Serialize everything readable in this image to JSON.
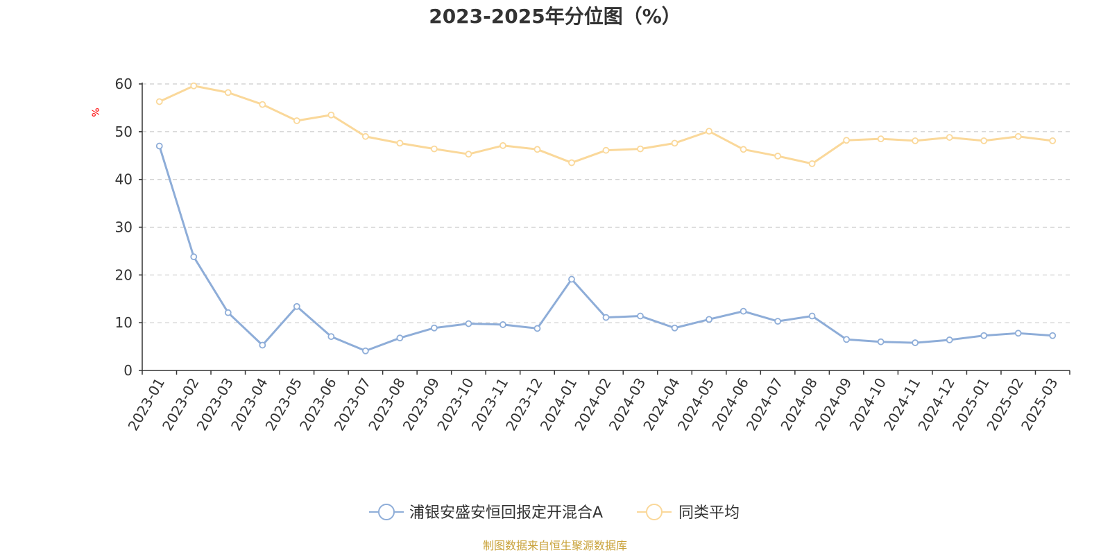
{
  "chart_data": {
    "type": "line",
    "title": "2023-2025年分位图（%）",
    "y_unit": "%",
    "ylim": [
      0,
      60
    ],
    "yticks": [
      0,
      10,
      20,
      30,
      40,
      50,
      60
    ],
    "grid": "horizontal-dashed",
    "legend_position": "bottom-center",
    "categories": [
      "2023-01",
      "2023-02",
      "2023-03",
      "2023-04",
      "2023-05",
      "2023-06",
      "2023-07",
      "2023-08",
      "2023-09",
      "2023-10",
      "2023-11",
      "2023-12",
      "2024-01",
      "2024-02",
      "2024-03",
      "2024-04",
      "2024-05",
      "2024-06",
      "2024-07",
      "2024-08",
      "2024-09",
      "2024-10",
      "2024-11",
      "2024-12",
      "2025-01",
      "2025-02",
      "2025-03"
    ],
    "series": [
      {
        "name": "浦银安盛安恒回报定开混合A",
        "color": "#8eadd8",
        "values": [
          47.0,
          23.8,
          12.1,
          5.3,
          13.4,
          7.1,
          4.1,
          6.8,
          8.9,
          9.8,
          9.6,
          8.8,
          19.1,
          11.1,
          11.4,
          8.9,
          10.7,
          12.4,
          10.3,
          11.4,
          6.5,
          6.0,
          5.8,
          6.4,
          7.3,
          7.8,
          7.3
        ]
      },
      {
        "name": "同类平均",
        "color": "#fad89a",
        "values": [
          56.3,
          59.6,
          58.2,
          55.7,
          52.3,
          53.5,
          49.0,
          47.6,
          46.4,
          45.3,
          47.1,
          46.3,
          43.5,
          46.1,
          46.4,
          47.6,
          50.1,
          46.3,
          44.9,
          43.3,
          48.2,
          48.5,
          48.1,
          48.8,
          48.1,
          49.0,
          48.1
        ]
      }
    ]
  },
  "footer": {
    "source": "制图数据来自恒生聚源数据库"
  }
}
